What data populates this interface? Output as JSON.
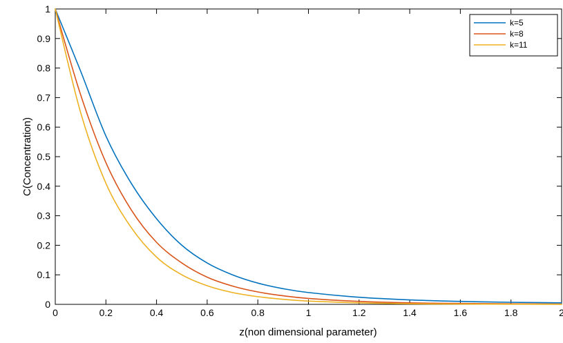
{
  "chart_data": {
    "type": "line",
    "xlabel": "z(non dimensional parameter)",
    "ylabel": "C(Concentration)",
    "xlim": [
      0,
      2
    ],
    "ylim": [
      0,
      1
    ],
    "x_ticks": [
      "0",
      "0.2",
      "0.4",
      "0.6",
      "0.8",
      "1",
      "1.2",
      "1.4",
      "1.6",
      "1.8",
      "2"
    ],
    "y_ticks": [
      "0",
      "0.1",
      "0.2",
      "0.3",
      "0.4",
      "0.5",
      "0.6",
      "0.7",
      "0.8",
      "0.9",
      "1"
    ],
    "grid": false,
    "legend": {
      "position": "top-right"
    },
    "x": [
      0,
      0.1,
      0.2,
      0.3,
      0.4,
      0.5,
      0.6,
      0.7,
      0.8,
      0.9,
      1.0,
      1.2,
      1.4,
      1.6,
      1.8,
      2.0
    ],
    "series": [
      {
        "name": "k=5",
        "color": "#0072BD",
        "values": [
          1.0,
          0.79,
          0.57,
          0.41,
          0.29,
          0.2,
          0.14,
          0.1,
          0.072,
          0.053,
          0.04,
          0.024,
          0.015,
          0.01,
          0.007,
          0.005
        ]
      },
      {
        "name": "k=8",
        "color": "#D95319",
        "values": [
          1.0,
          0.71,
          0.48,
          0.32,
          0.21,
          0.14,
          0.092,
          0.062,
          0.042,
          0.029,
          0.02,
          0.01,
          0.005,
          0.003,
          0.002,
          0.001
        ]
      },
      {
        "name": "k=11",
        "color": "#EDB120",
        "values": [
          1.0,
          0.65,
          0.41,
          0.26,
          0.16,
          0.1,
          0.063,
          0.04,
          0.026,
          0.017,
          0.011,
          0.005,
          0.002,
          0.001,
          0.0005,
          0.0002
        ]
      }
    ]
  }
}
